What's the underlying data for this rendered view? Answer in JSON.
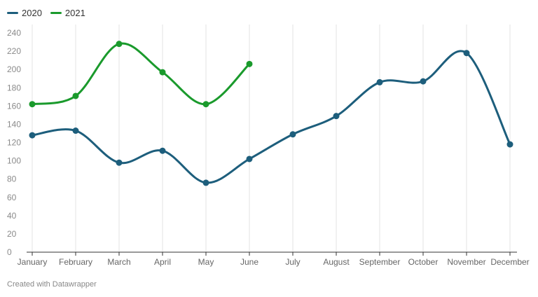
{
  "chart_data": {
    "type": "line",
    "categories": [
      "January",
      "February",
      "March",
      "April",
      "May",
      "June",
      "July",
      "August",
      "September",
      "October",
      "November",
      "December"
    ],
    "ylim": [
      0,
      240
    ],
    "yticks": [
      0,
      20,
      40,
      60,
      80,
      100,
      120,
      140,
      160,
      180,
      200,
      220,
      240
    ],
    "grid": "vertical",
    "legend_position": "top-left",
    "series": [
      {
        "name": "2020",
        "color": "#1d5e7c",
        "values": [
          128,
          133,
          98,
          111,
          76,
          102,
          129,
          149,
          186,
          187,
          218,
          118
        ]
      },
      {
        "name": "2021",
        "color": "#1a9a2c",
        "values": [
          162,
          171,
          228,
          197,
          162,
          206,
          null,
          null,
          null,
          null,
          null,
          null
        ]
      }
    ]
  },
  "footer": {
    "text": "Created with Datawrapper"
  }
}
